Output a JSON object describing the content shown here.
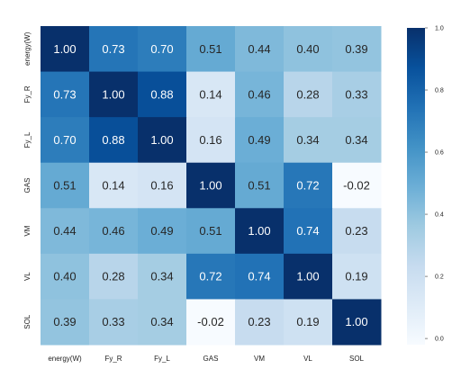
{
  "chart_data": {
    "type": "heatmap",
    "title": "",
    "row_labels": [
      "energy(W)",
      "Fy_R",
      "Fy_L",
      "GAS",
      "VM",
      "VL",
      "SOL"
    ],
    "col_labels": [
      "energy(W)",
      "Fy_R",
      "Fy_L",
      "GAS",
      "VM",
      "VL",
      "SOL"
    ],
    "values": [
      [
        1.0,
        0.73,
        0.7,
        0.51,
        0.44,
        0.4,
        0.39
      ],
      [
        0.73,
        1.0,
        0.88,
        0.14,
        0.46,
        0.28,
        0.33
      ],
      [
        0.7,
        0.88,
        1.0,
        0.16,
        0.49,
        0.34,
        0.34
      ],
      [
        0.51,
        0.14,
        0.16,
        1.0,
        0.51,
        0.72,
        -0.02
      ],
      [
        0.44,
        0.46,
        0.49,
        0.51,
        1.0,
        0.74,
        0.23
      ],
      [
        0.4,
        0.28,
        0.34,
        0.72,
        0.74,
        1.0,
        0.19
      ],
      [
        0.39,
        0.33,
        0.34,
        -0.02,
        0.23,
        0.19,
        1.0
      ]
    ],
    "cell_labels": [
      [
        "1.00",
        "0.73",
        "0.70",
        "0.51",
        "0.44",
        "0.40",
        "0.39"
      ],
      [
        "0.73",
        "1.00",
        "0.88",
        "0.14",
        "0.46",
        "0.28",
        "0.33"
      ],
      [
        "0.70",
        "0.88",
        "1.00",
        "0.16",
        "0.49",
        "0.34",
        "0.34"
      ],
      [
        "0.51",
        "0.14",
        "0.16",
        "1.00",
        "0.51",
        "0.72",
        "-0.02"
      ],
      [
        "0.44",
        "0.46",
        "0.49",
        "0.51",
        "1.00",
        "0.74",
        "0.23"
      ],
      [
        "0.40",
        "0.28",
        "0.34",
        "0.72",
        "0.74",
        "1.00",
        "0.19"
      ],
      [
        "0.39",
        "0.33",
        "0.34",
        "-0.02",
        "0.23",
        "0.19",
        "1.00"
      ]
    ],
    "colormap": "Blues",
    "vmin": -0.02,
    "vmax": 1.0,
    "colorbar": {
      "ticks": [
        0.0,
        0.2,
        0.4,
        0.6,
        0.8,
        1.0
      ],
      "tick_labels": [
        "0.0",
        "0.2",
        "0.4",
        "0.6",
        "0.8",
        "1.0"
      ]
    },
    "colors": {
      "low": "#f7fbff",
      "high": "#08306b"
    }
  }
}
